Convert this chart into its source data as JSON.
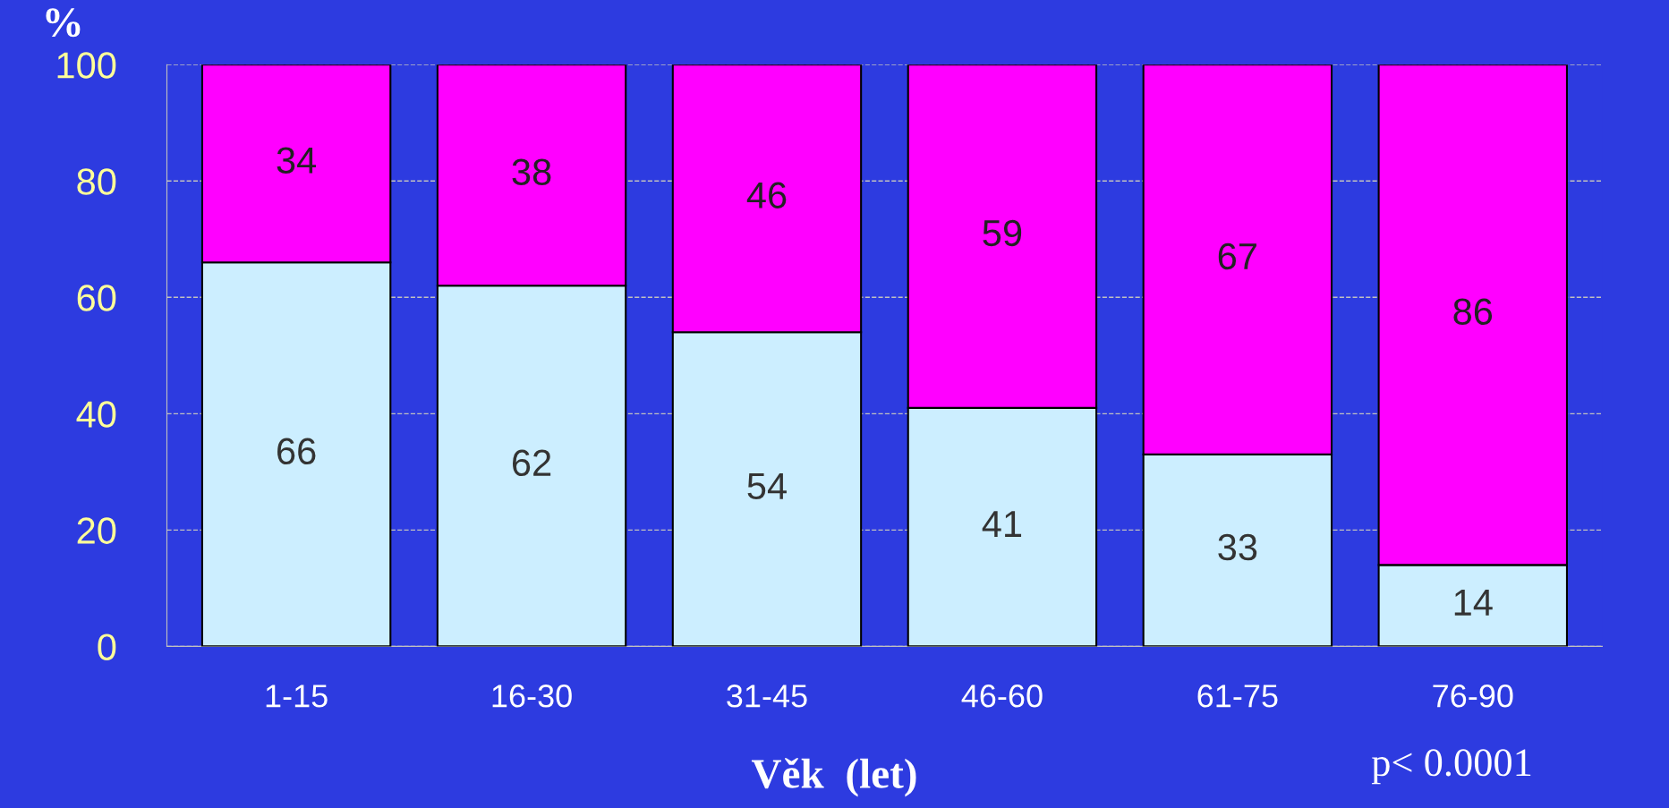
{
  "chart_data": {
    "type": "bar",
    "stacked": true,
    "ylabel": "%",
    "xlabel": "Věk  (let)",
    "categories": [
      "1-15",
      "16-30",
      "31-45",
      "46-60",
      "61-75",
      "76-90"
    ],
    "series": [
      {
        "color": "#cceeff",
        "values": [
          66,
          62,
          54,
          41,
          33,
          14
        ]
      },
      {
        "color": "#ff00ff",
        "values": [
          34,
          38,
          46,
          59,
          67,
          86
        ]
      }
    ],
    "ylim": [
      0,
      100
    ],
    "yticks": [
      0,
      20,
      40,
      60,
      80,
      100
    ],
    "grid": "y",
    "data_labels": true,
    "annotations": [
      "p< 0.0001"
    ]
  }
}
